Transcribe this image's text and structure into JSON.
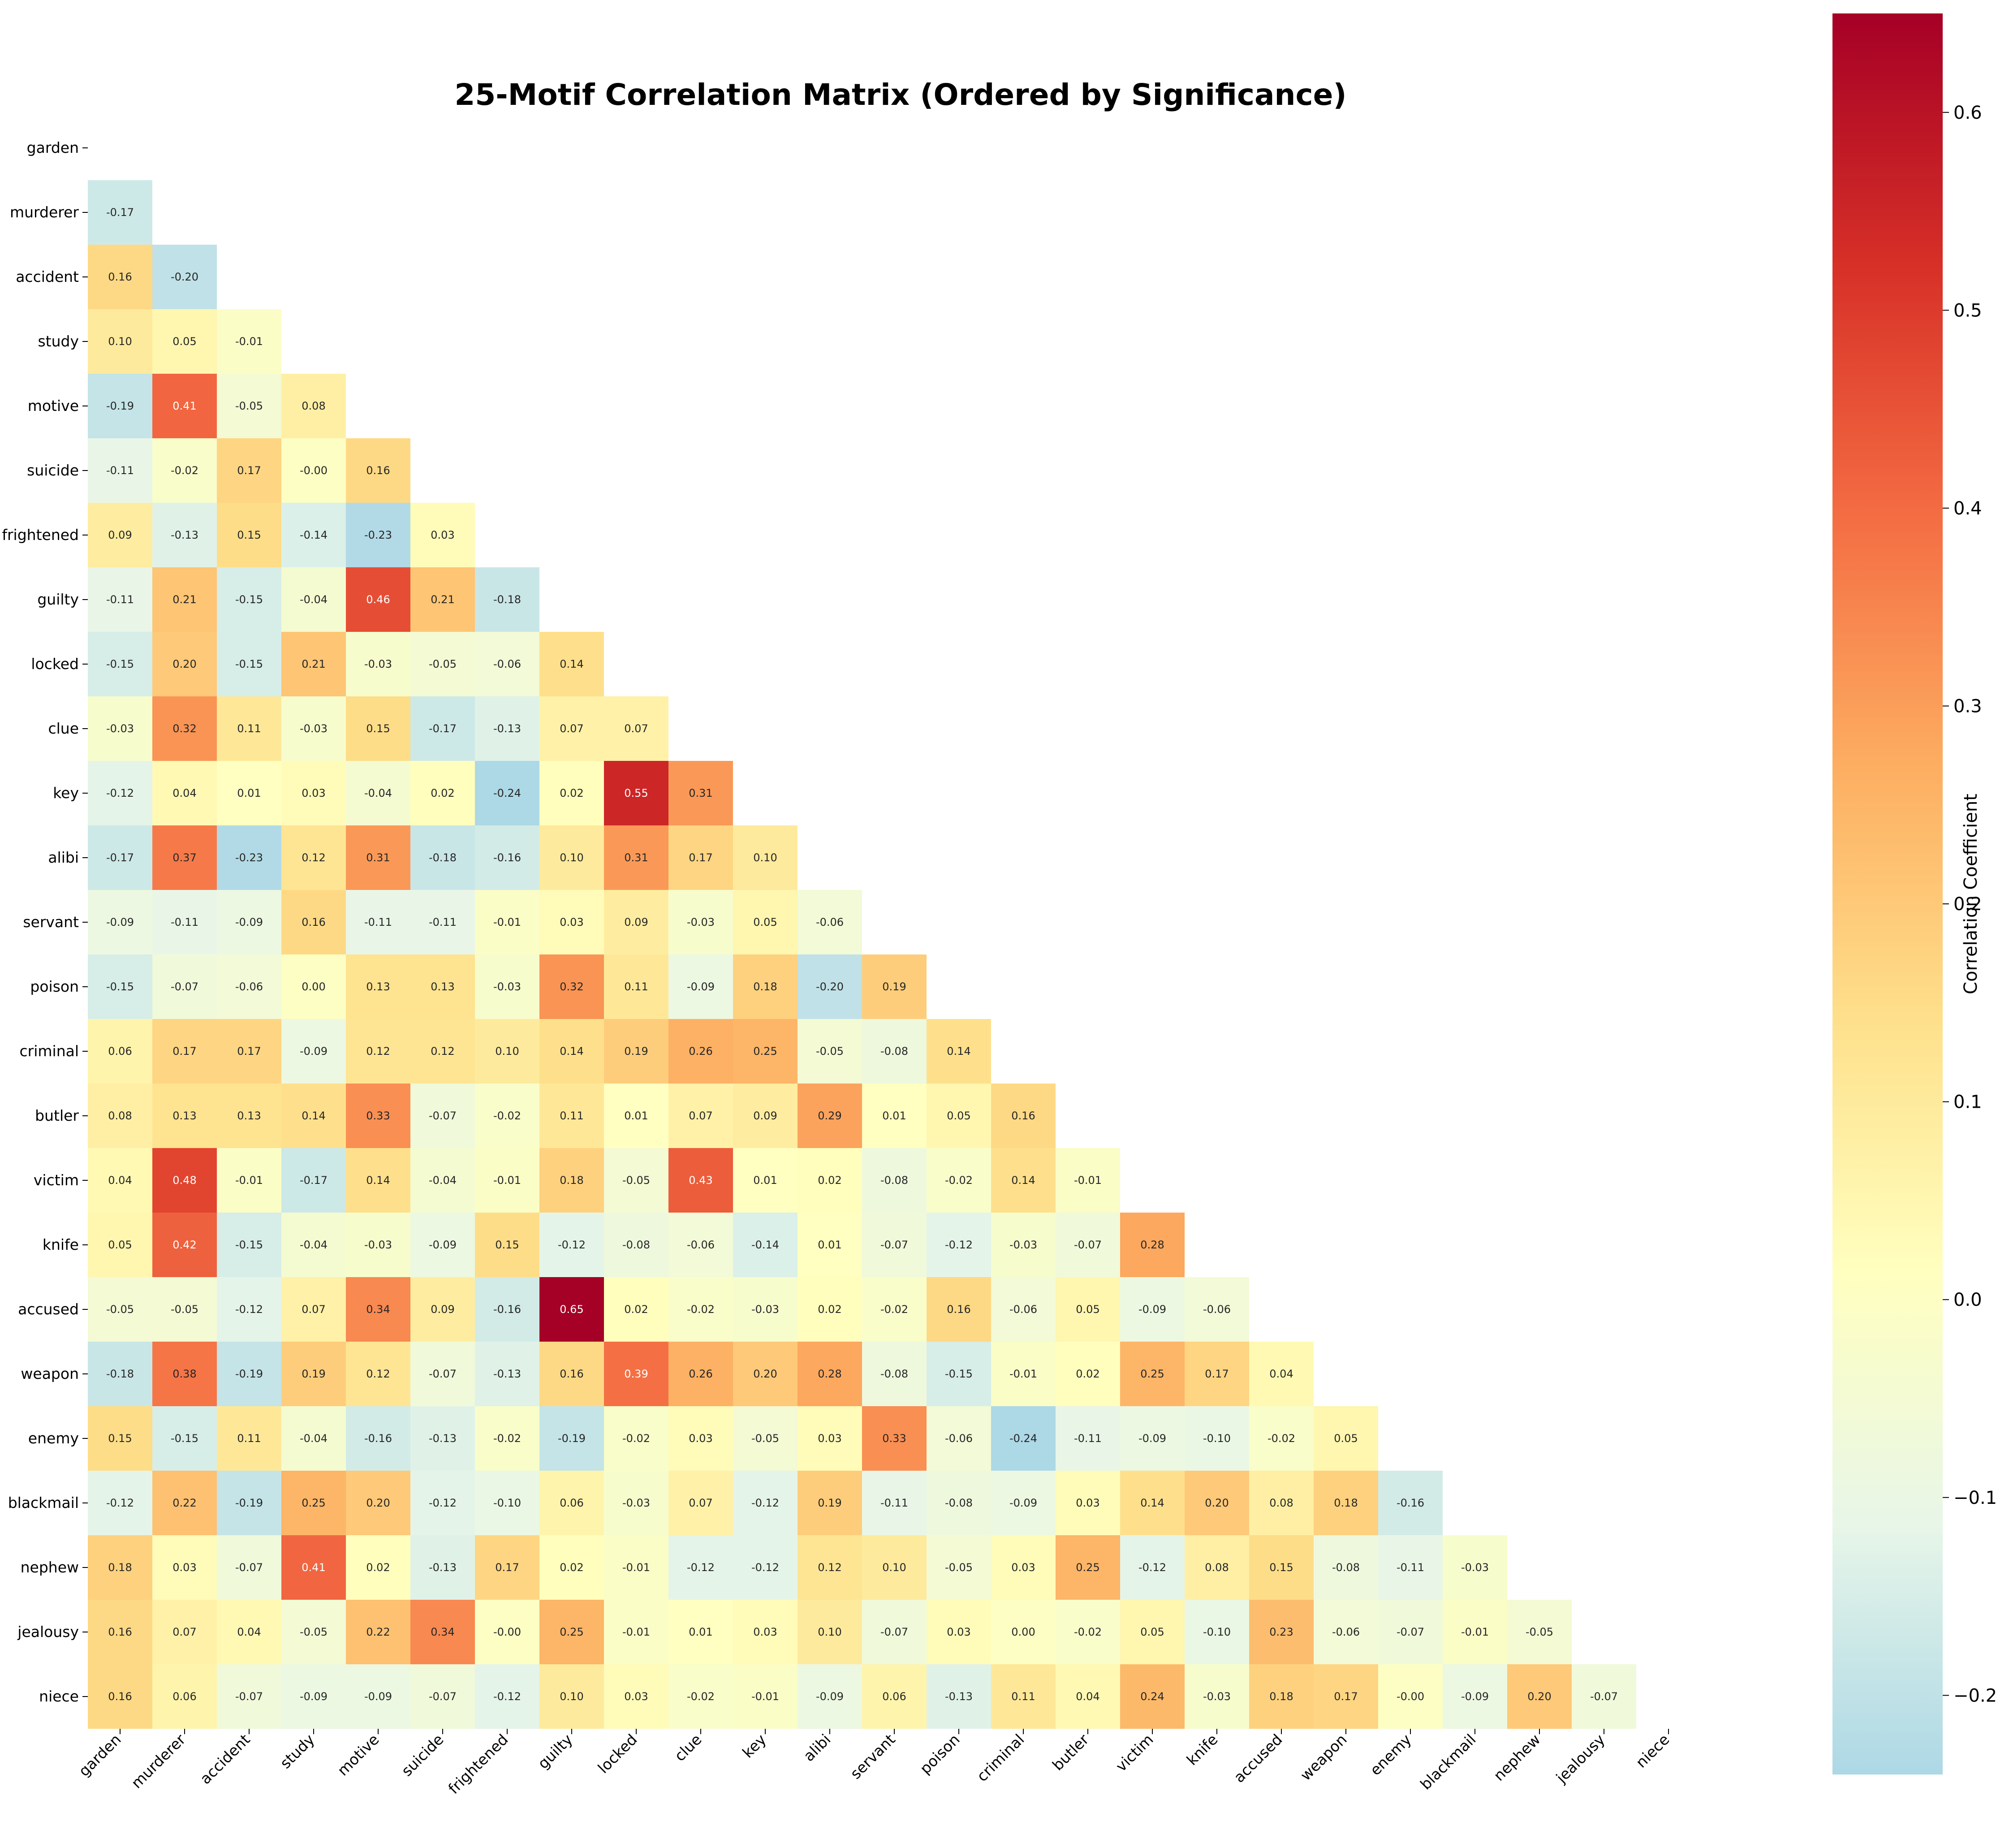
{
  "chart_data": {
    "type": "heatmap",
    "title": "25-Motif Correlation Matrix (Ordered by Significance)",
    "labels": [
      "garden",
      "murderer",
      "accident",
      "study",
      "motive",
      "suicide",
      "frightened",
      "guilty",
      "locked",
      "clue",
      "key",
      "alibi",
      "servant",
      "poison",
      "criminal",
      "butler",
      "victim",
      "knife",
      "accused",
      "weapon",
      "enemy",
      "blackmail",
      "nephew",
      "jealousy",
      "niece"
    ],
    "lower_triangle": [
      [],
      [
        "-0.17"
      ],
      [
        "0.16",
        "-0.20"
      ],
      [
        "0.10",
        "0.05",
        "-0.01"
      ],
      [
        "-0.19",
        "0.41",
        "-0.05",
        "0.08"
      ],
      [
        "-0.11",
        "-0.02",
        "0.17",
        "-0.00",
        "0.16"
      ],
      [
        "0.09",
        "-0.13",
        "0.15",
        "-0.14",
        "-0.23",
        "0.03"
      ],
      [
        "-0.11",
        "0.21",
        "-0.15",
        "-0.04",
        "0.46",
        "0.21",
        "-0.18"
      ],
      [
        "-0.15",
        "0.20",
        "-0.15",
        "0.21",
        "-0.03",
        "-0.05",
        "-0.06",
        "0.14"
      ],
      [
        "-0.03",
        "0.32",
        "0.11",
        "-0.03",
        "0.15",
        "-0.17",
        "-0.13",
        "0.07",
        "0.07"
      ],
      [
        "-0.12",
        "0.04",
        "0.01",
        "0.03",
        "-0.04",
        "0.02",
        "-0.24",
        "0.02",
        "0.55",
        "0.31"
      ],
      [
        "-0.17",
        "0.37",
        "-0.23",
        "0.12",
        "0.31",
        "-0.18",
        "-0.16",
        "0.10",
        "0.31",
        "0.17",
        "0.10"
      ],
      [
        "-0.09",
        "-0.11",
        "-0.09",
        "0.16",
        "-0.11",
        "-0.11",
        "-0.01",
        "0.03",
        "0.09",
        "-0.03",
        "0.05",
        "-0.06"
      ],
      [
        "-0.15",
        "-0.07",
        "-0.06",
        "0.00",
        "0.13",
        "0.13",
        "-0.03",
        "0.32",
        "0.11",
        "-0.09",
        "0.18",
        "-0.20",
        "0.19"
      ],
      [
        "0.06",
        "0.17",
        "0.17",
        "-0.09",
        "0.12",
        "0.12",
        "0.10",
        "0.14",
        "0.19",
        "0.26",
        "0.25",
        "-0.05",
        "-0.08",
        "0.14"
      ],
      [
        "0.08",
        "0.13",
        "0.13",
        "0.14",
        "0.33",
        "-0.07",
        "-0.02",
        "0.11",
        "0.01",
        "0.07",
        "0.09",
        "0.29",
        "0.01",
        "0.05",
        "0.16"
      ],
      [
        "0.04",
        "0.48",
        "-0.01",
        "-0.17",
        "0.14",
        "-0.04",
        "-0.01",
        "0.18",
        "-0.05",
        "0.43",
        "0.01",
        "0.02",
        "-0.08",
        "-0.02",
        "0.14",
        "-0.01"
      ],
      [
        "0.05",
        "0.42",
        "-0.15",
        "-0.04",
        "-0.03",
        "-0.09",
        "0.15",
        "-0.12",
        "-0.08",
        "-0.06",
        "-0.14",
        "0.01",
        "-0.07",
        "-0.12",
        "-0.03",
        "-0.07",
        "0.28"
      ],
      [
        "-0.05",
        "-0.05",
        "-0.12",
        "0.07",
        "0.34",
        "0.09",
        "-0.16",
        "0.65",
        "0.02",
        "-0.02",
        "-0.03",
        "0.02",
        "-0.02",
        "0.16",
        "-0.06",
        "0.05",
        "-0.09",
        "-0.06"
      ],
      [
        "-0.18",
        "0.38",
        "-0.19",
        "0.19",
        "0.12",
        "-0.07",
        "-0.13",
        "0.16",
        "0.39",
        "0.26",
        "0.20",
        "0.28",
        "-0.08",
        "-0.15",
        "-0.01",
        "0.02",
        "0.25",
        "0.17",
        "0.04"
      ],
      [
        "0.15",
        "-0.15",
        "0.11",
        "-0.04",
        "-0.16",
        "-0.13",
        "-0.02",
        "-0.19",
        "-0.02",
        "0.03",
        "-0.05",
        "0.03",
        "0.33",
        "-0.06",
        "-0.24",
        "-0.11",
        "-0.09",
        "-0.10",
        "-0.02",
        "0.05"
      ],
      [
        "-0.12",
        "0.22",
        "-0.19",
        "0.25",
        "0.20",
        "-0.12",
        "-0.10",
        "0.06",
        "-0.03",
        "0.07",
        "-0.12",
        "0.19",
        "-0.11",
        "-0.08",
        "-0.09",
        "0.03",
        "0.14",
        "0.20",
        "0.08",
        "0.18",
        "-0.16"
      ],
      [
        "0.18",
        "0.03",
        "-0.07",
        "0.41",
        "0.02",
        "-0.13",
        "0.17",
        "0.02",
        "-0.01",
        "-0.12",
        "-0.12",
        "0.12",
        "0.10",
        "-0.05",
        "0.03",
        "0.25",
        "-0.12",
        "0.08",
        "0.15",
        "-0.08",
        "-0.11",
        "-0.03"
      ],
      [
        "0.16",
        "0.07",
        "0.04",
        "-0.05",
        "0.22",
        "0.34",
        "-0.00",
        "0.25",
        "-0.01",
        "0.01",
        "0.03",
        "0.10",
        "-0.07",
        "0.03",
        "0.00",
        "-0.02",
        "0.05",
        "-0.10",
        "0.23",
        "-0.06",
        "-0.07",
        "-0.01",
        "-0.05"
      ],
      [
        "0.16",
        "0.06",
        "-0.07",
        "-0.09",
        "-0.09",
        "-0.07",
        "-0.12",
        "0.10",
        "0.03",
        "-0.02",
        "-0.01",
        "-0.09",
        "0.06",
        "-0.13",
        "0.11",
        "0.04",
        "0.24",
        "-0.03",
        "0.18",
        "0.17",
        "-0.00",
        "-0.09",
        "0.20",
        "-0.07"
      ]
    ],
    "colorbar": {
      "label": "Correlation Coefficient",
      "vmin": -0.24,
      "vmax": 0.65,
      "ticks": [
        "-0.2",
        "-0.1",
        "0.0",
        "0.1",
        "0.2",
        "0.3",
        "0.4",
        "0.5",
        "0.6"
      ],
      "colormap": [
        "#add8e6",
        "#e8f6e8",
        "#ffffbf",
        "#fee08b",
        "#fdae61",
        "#f46d43",
        "#d73027",
        "#a50026"
      ]
    }
  }
}
